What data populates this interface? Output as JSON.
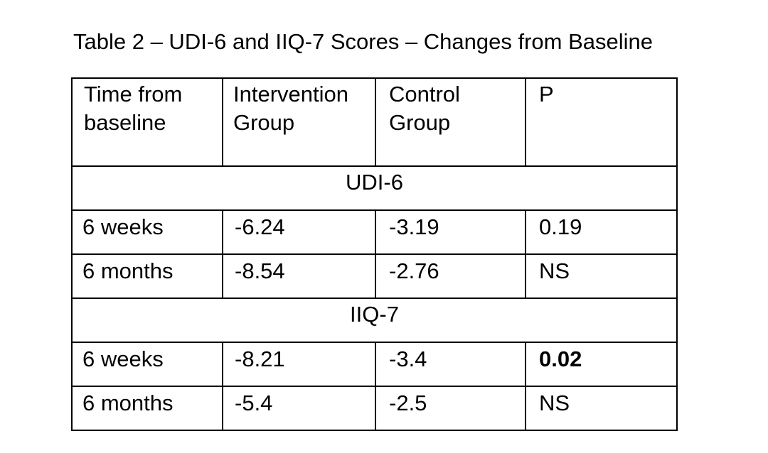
{
  "title": "Table 2 – UDI-6 and IIQ-7 Scores – Changes from Baseline",
  "table": {
    "headers": [
      {
        "line1": "Time from",
        "line2": "baseline"
      },
      {
        "line1": "Intervention",
        "line2": "Group"
      },
      {
        "line1": "Control",
        "line2": "Group"
      },
      {
        "line1": "P",
        "line2": ""
      }
    ],
    "sections": [
      {
        "label": "UDI-6",
        "rows": [
          {
            "time": "6 weeks",
            "intervention": "-6.24",
            "control": "-3.19",
            "p": "0.19",
            "p_bold": false
          },
          {
            "time": "6 months",
            "intervention": "-8.54",
            "control": "-2.76",
            "p": "NS",
            "p_bold": false
          }
        ]
      },
      {
        "label": "IIQ-7",
        "rows": [
          {
            "time": "6 weeks",
            "intervention": "-8.21",
            "control": "-3.4",
            "p": "0.02",
            "p_bold": true
          },
          {
            "time": "6 months",
            "intervention": "-5.4",
            "control": "-2.5",
            "p": "NS",
            "p_bold": false
          }
        ]
      }
    ]
  }
}
